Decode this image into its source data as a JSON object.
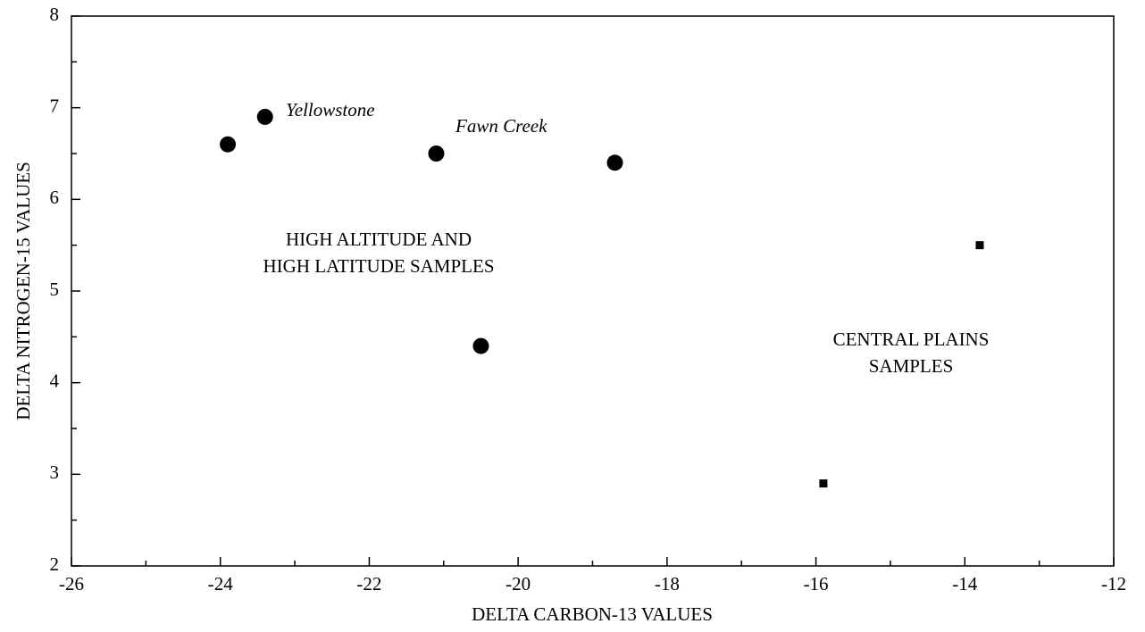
{
  "chart_data": {
    "type": "scatter",
    "xlabel": "DELTA CARBON-13 VALUES",
    "ylabel": "DELTA NITROGEN-15 VALUES",
    "xlim": [
      -26,
      -12
    ],
    "xticks": [
      -26,
      -24,
      -22,
      -20,
      -18,
      -16,
      -14,
      -12
    ],
    "ylim": [
      2,
      8
    ],
    "yticks": [
      2,
      3,
      4,
      5,
      6,
      7,
      8
    ],
    "series": [
      {
        "marker": "circle",
        "color": "#000000",
        "x": [
          -23.9,
          -23.4,
          -21.1,
          -18.7,
          -20.5
        ],
        "values": [
          6.6,
          6.9,
          6.5,
          6.4,
          4.4
        ]
      },
      {
        "marker": "square",
        "color": "#000000",
        "x": [
          -15.9,
          -13.8
        ],
        "values": [
          2.9,
          5.5
        ]
      }
    ],
    "annotations": [
      {
        "lines": [
          "Yellowstone"
        ],
        "style": "italic"
      },
      {
        "lines": [
          "Fawn Creek"
        ],
        "style": "italic"
      },
      {
        "lines": [
          "HIGH ALTITUDE AND",
          "HIGH LATITUDE SAMPLES"
        ],
        "style": "normal"
      },
      {
        "lines": [
          "CENTRAL PLAINS",
          "SAMPLES"
        ],
        "style": "normal"
      }
    ]
  }
}
